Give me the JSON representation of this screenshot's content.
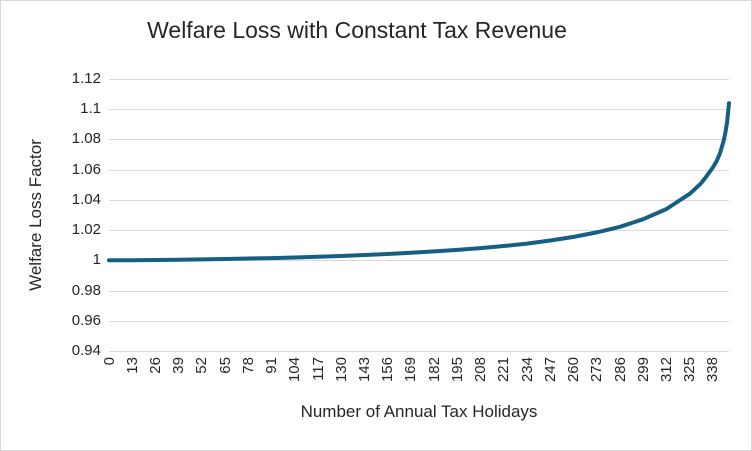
{
  "colors": {
    "line": "#156082",
    "gridline": "#D9D9D9",
    "text": "#262626",
    "border": "#D9D9D9",
    "background": "#FFFFFF"
  },
  "chart_data": {
    "type": "line",
    "title": "Welfare Loss with Constant Tax Revenue",
    "xlabel": "Number of Annual Tax Holidays",
    "ylabel": "Welfare Loss Factor",
    "xlim": [
      0,
      347
    ],
    "ylim": [
      0.94,
      1.12
    ],
    "grid": "horizontal",
    "legend": "none",
    "x_tick_interval": 13,
    "x_ticks": [
      0,
      13,
      26,
      39,
      52,
      65,
      78,
      91,
      104,
      117,
      130,
      143,
      156,
      169,
      182,
      195,
      208,
      221,
      234,
      247,
      260,
      273,
      286,
      299,
      312,
      325,
      338
    ],
    "y_ticks": [
      {
        "value": 1.12,
        "label": "1.12"
      },
      {
        "value": 1.1,
        "label": "1.1"
      },
      {
        "value": 1.08,
        "label": "1.08"
      },
      {
        "value": 1.06,
        "label": "1.06"
      },
      {
        "value": 1.04,
        "label": "1.04"
      },
      {
        "value": 1.02,
        "label": "1.02"
      },
      {
        "value": 1,
        "label": "1"
      },
      {
        "value": 0.98,
        "label": "0.98"
      },
      {
        "value": 0.96,
        "label": "0.96"
      },
      {
        "value": 0.94,
        "label": "0.94"
      }
    ],
    "series": [
      {
        "name": "Welfare Loss Factor",
        "color": "#156082",
        "stroke_width": 4,
        "points": [
          [
            0,
            1.0
          ],
          [
            13,
            1.0001
          ],
          [
            26,
            1.0002
          ],
          [
            39,
            1.0004
          ],
          [
            52,
            1.0006
          ],
          [
            65,
            1.0009
          ],
          [
            78,
            1.0012
          ],
          [
            91,
            1.0015
          ],
          [
            104,
            1.0019
          ],
          [
            117,
            1.0024
          ],
          [
            130,
            1.0029
          ],
          [
            143,
            1.0035
          ],
          [
            156,
            1.0042
          ],
          [
            169,
            1.005
          ],
          [
            182,
            1.0059
          ],
          [
            195,
            1.0069
          ],
          [
            208,
            1.0081
          ],
          [
            221,
            1.0095
          ],
          [
            234,
            1.0111
          ],
          [
            247,
            1.0131
          ],
          [
            260,
            1.0155
          ],
          [
            273,
            1.0185
          ],
          [
            286,
            1.0222
          ],
          [
            299,
            1.0272
          ],
          [
            312,
            1.034
          ],
          [
            325,
            1.044
          ],
          [
            331,
            1.0505
          ],
          [
            334,
            1.055
          ],
          [
            338,
            1.0615
          ],
          [
            340,
            1.0655
          ],
          [
            342,
            1.071
          ],
          [
            344,
            1.079
          ],
          [
            345,
            1.0845
          ],
          [
            346,
            1.092
          ],
          [
            347,
            1.104
          ]
        ]
      }
    ]
  }
}
